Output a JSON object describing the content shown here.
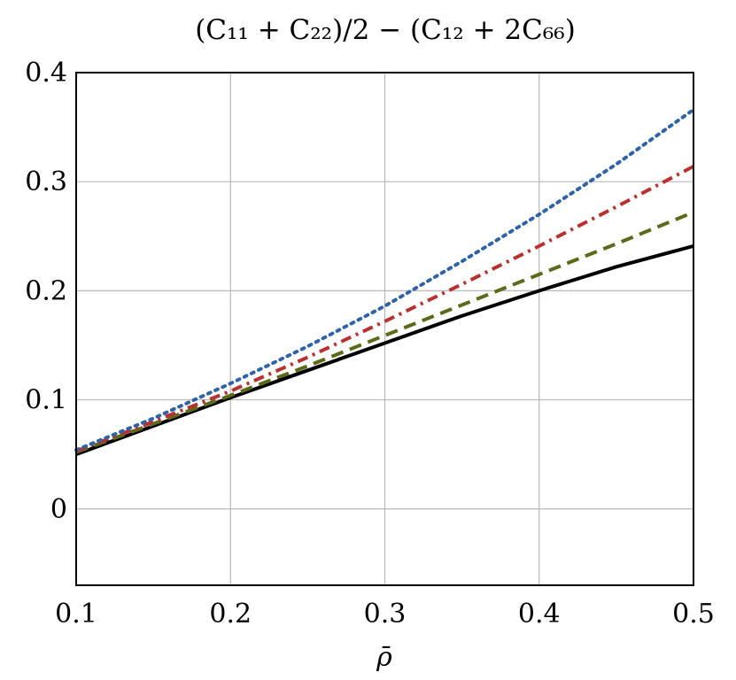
{
  "chart_data": {
    "type": "line",
    "title": "(C₁₁ + C₂₂)/2 − (C₁₂ + 2C₆₆)",
    "xlabel": "ρ̄",
    "ylabel": "",
    "xlim": [
      0.1,
      0.5
    ],
    "ylim": [
      -0.07,
      0.4
    ],
    "xticks": [
      0.1,
      0.2,
      0.3,
      0.4,
      0.5
    ],
    "xtick_labels": [
      "0.1",
      "0.2",
      "0.3",
      "0.4",
      "0.5"
    ],
    "yticks": [
      0,
      0.1,
      0.2,
      0.3,
      0.4
    ],
    "ytick_labels": [
      "0",
      "0.1",
      "0.2",
      "0.3",
      "0.4"
    ],
    "grid": true,
    "series": [
      {
        "color": "#000000",
        "style": "solid",
        "x": [
          0.1,
          0.15,
          0.2,
          0.25,
          0.3,
          0.35,
          0.4,
          0.45,
          0.5
        ],
        "y": [
          0.05,
          0.076,
          0.102,
          0.127,
          0.152,
          0.177,
          0.2,
          0.222,
          0.241
        ]
      },
      {
        "color": "#5b6b1a",
        "style": "dashed",
        "x": [
          0.1,
          0.15,
          0.2,
          0.25,
          0.3,
          0.35,
          0.4,
          0.45,
          0.5
        ],
        "y": [
          0.052,
          0.078,
          0.104,
          0.131,
          0.159,
          0.187,
          0.215,
          0.243,
          0.272
        ]
      },
      {
        "color": "#b8312f",
        "style": "dashdot",
        "x": [
          0.1,
          0.15,
          0.2,
          0.25,
          0.3,
          0.35,
          0.4,
          0.45,
          0.5
        ],
        "y": [
          0.053,
          0.08,
          0.108,
          0.139,
          0.172,
          0.206,
          0.241,
          0.277,
          0.314
        ]
      },
      {
        "color": "#2f63a8",
        "style": "dotted",
        "x": [
          0.1,
          0.15,
          0.2,
          0.25,
          0.3,
          0.35,
          0.4,
          0.45,
          0.5
        ],
        "y": [
          0.054,
          0.083,
          0.115,
          0.149,
          0.186,
          0.227,
          0.27,
          0.316,
          0.366
        ]
      }
    ]
  }
}
